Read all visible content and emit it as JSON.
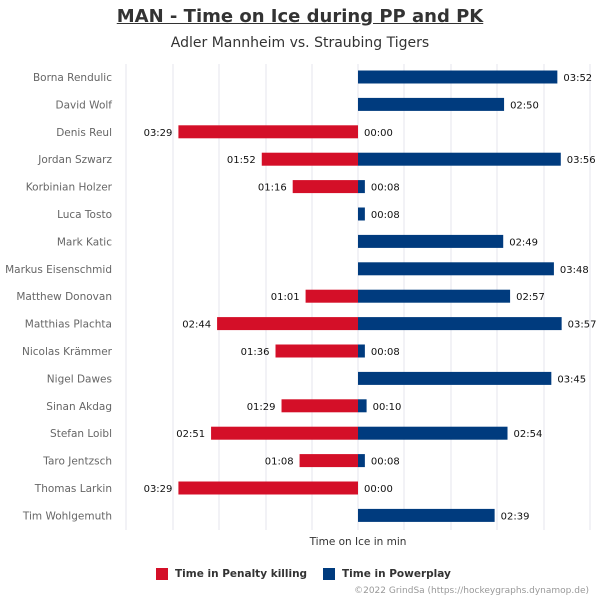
{
  "title": "MAN - Time on Ice during PP and PK",
  "subtitle": "Adler Mannheim vs. Straubing Tigers",
  "credit": "©2022 GrindSa (https://hockeygraphs.dynamop.de)",
  "colors": {
    "penalty_killing": "#d40f28",
    "powerplay": "#003b7e",
    "grid": "#e4e4ec",
    "tick_label": "#666666",
    "value_label": "#111111"
  },
  "chart_data": {
    "type": "bar",
    "orientation": "horizontal",
    "xlabel": "Time on Ice in min",
    "categories": [
      "Borna Rendulic",
      "David Wolf",
      "Denis Reul",
      "Jordan Szwarz",
      "Korbinian Holzer",
      "Luca Tosto",
      "Mark Katic",
      "Markus Eisenschmid",
      "Matthew Donovan",
      "Matthias Plachta",
      "Nicolas Krämmer",
      "Nigel Dawes",
      "Sinan Akdag",
      "Stefan Loibl",
      "Taro Jentzsch",
      "Thomas Larkin",
      "Tim Wohlgemuth"
    ],
    "series": [
      {
        "name": "Time in Penalty killing",
        "color": "#d40f28",
        "direction": "left",
        "labels": [
          null,
          null,
          "03:29",
          "01:52",
          "01:16",
          null,
          null,
          null,
          "01:01",
          "02:44",
          "01:36",
          null,
          "01:29",
          "02:51",
          "01:08",
          "03:29",
          null
        ],
        "values_seconds": [
          0,
          0,
          209,
          112,
          76,
          0,
          0,
          0,
          61,
          164,
          96,
          0,
          89,
          171,
          68,
          209,
          0
        ]
      },
      {
        "name": "Time in Powerplay",
        "color": "#003b7e",
        "direction": "right",
        "labels": [
          "03:52",
          "02:50",
          "00:00",
          "03:56",
          "00:08",
          "00:08",
          "02:49",
          "03:48",
          "02:57",
          "03:57",
          "00:08",
          "03:45",
          "00:10",
          "02:54",
          "00:08",
          "00:00",
          "02:39"
        ],
        "values_seconds": [
          232,
          170,
          0,
          236,
          8,
          8,
          169,
          228,
          177,
          237,
          8,
          225,
          10,
          174,
          8,
          0,
          159
        ]
      }
    ],
    "xlim_seconds": [
      -300,
      300
    ],
    "grid": true,
    "legend_position": "bottom"
  }
}
